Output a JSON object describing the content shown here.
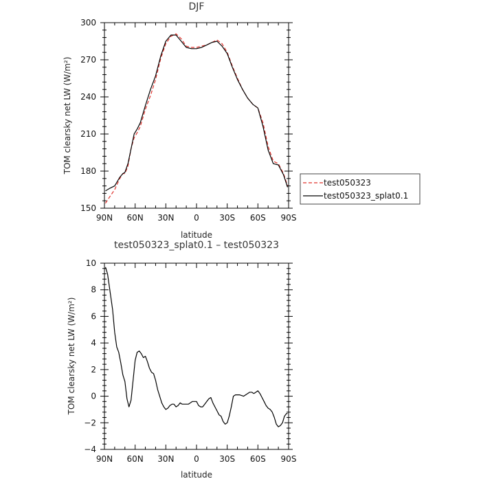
{
  "chart_data": [
    {
      "type": "line",
      "title": "DJF",
      "xlabel": "latitude",
      "ylabel": "TOM clearsky net LW (W/m²)",
      "xlim": [
        90,
        -90
      ],
      "ylim": [
        150,
        300
      ],
      "x_tick_values": [
        90,
        60,
        30,
        0,
        -30,
        -60,
        -90
      ],
      "x_tick_labels": [
        "90N",
        "60N",
        "30N",
        "0",
        "30S",
        "60S",
        "90S"
      ],
      "y_tick_values": [
        150,
        180,
        210,
        240,
        270,
        300
      ],
      "y_tick_labels": [
        "150",
        "180",
        "210",
        "240",
        "270",
        "300"
      ],
      "legend_position": "right",
      "series": [
        {
          "name": "test050323",
          "color": "#e0302a",
          "dash": "dashed",
          "x": [
            89,
            85,
            80,
            75,
            72,
            70,
            67,
            64,
            61,
            58,
            55,
            50,
            45,
            40,
            35,
            30,
            25,
            20,
            15,
            10,
            5,
            0,
            -5,
            -10,
            -15,
            -20,
            -25,
            -30,
            -35,
            -40,
            -45,
            -50,
            -55,
            -60,
            -65,
            -70,
            -75,
            -80,
            -85,
            -89
          ],
          "y": [
            154,
            159,
            165,
            174,
            178,
            178,
            184,
            198,
            207,
            211,
            216,
            230,
            241,
            254,
            271,
            283,
            289,
            291,
            287,
            281,
            280,
            280,
            281,
            282,
            284,
            286,
            283,
            276,
            265,
            255,
            246,
            239,
            234,
            231,
            219,
            200,
            188,
            186,
            178,
            168
          ]
        },
        {
          "name": "test050323_splat0.1",
          "color": "#000000",
          "dash": "solid",
          "x": [
            89,
            85,
            80,
            75,
            72,
            70,
            67,
            64,
            61,
            58,
            55,
            50,
            45,
            40,
            35,
            30,
            25,
            20,
            15,
            10,
            5,
            0,
            -5,
            -10,
            -15,
            -20,
            -25,
            -30,
            -35,
            -40,
            -45,
            -50,
            -55,
            -60,
            -65,
            -70,
            -75,
            -80,
            -85,
            -89
          ],
          "y": [
            164,
            166,
            168,
            175,
            178,
            179,
            186,
            198,
            210,
            214,
            219,
            233,
            246,
            257,
            273,
            285,
            290,
            290,
            285,
            280,
            279,
            279,
            280,
            282,
            284,
            285,
            281,
            275,
            264,
            254,
            246,
            239,
            234,
            231,
            216,
            197,
            186,
            185,
            177,
            167
          ]
        }
      ]
    },
    {
      "type": "line",
      "title": "test050323_splat0.1 – test050323",
      "xlabel": "latitude",
      "ylabel": "TOM clearsky net LW (W/m²)",
      "xlim": [
        90,
        -90
      ],
      "ylim": [
        -4,
        10
      ],
      "x_tick_values": [
        90,
        60,
        30,
        0,
        -30,
        -60,
        -90
      ],
      "x_tick_labels": [
        "90N",
        "60N",
        "30N",
        "0",
        "30S",
        "60S",
        "90S"
      ],
      "y_tick_values": [
        -4,
        -2,
        0,
        2,
        4,
        6,
        8,
        10
      ],
      "y_tick_labels": [
        "−4",
        "−2",
        "0",
        "2",
        "4",
        "6",
        "8",
        "10"
      ],
      "series": [
        {
          "color": "#000000",
          "x": [
            89,
            87,
            84,
            82,
            80,
            78,
            76,
            74,
            72,
            70,
            68,
            66,
            64,
            62,
            60,
            58,
            56,
            54,
            52,
            50,
            48,
            46,
            44,
            42,
            40,
            38,
            36,
            34,
            32,
            30,
            28,
            26,
            24,
            22,
            20,
            18,
            16,
            14,
            12,
            10,
            8,
            6,
            4,
            2,
            0,
            -2,
            -4,
            -6,
            -8,
            -10,
            -12,
            -14,
            -16,
            -18,
            -20,
            -22,
            -24,
            -26,
            -28,
            -30,
            -32,
            -34,
            -36,
            -38,
            -40,
            -42,
            -44,
            -46,
            -48,
            -50,
            -52,
            -54,
            -56,
            -58,
            -60,
            -62,
            -64,
            -66,
            -68,
            -70,
            -72,
            -74,
            -76,
            -78,
            -80,
            -82,
            -84,
            -86,
            -88,
            -89
          ],
          "y": [
            9.7,
            9.2,
            7.6,
            6.5,
            4.8,
            3.7,
            3.3,
            2.5,
            1.6,
            1.1,
            -0.2,
            -0.8,
            -0.3,
            1.2,
            2.7,
            3.3,
            3.4,
            3.2,
            2.9,
            3.0,
            2.6,
            2.1,
            1.8,
            1.7,
            1.2,
            0.5,
            0.0,
            -0.5,
            -0.8,
            -1.0,
            -0.9,
            -0.7,
            -0.6,
            -0.6,
            -0.8,
            -0.7,
            -0.5,
            -0.6,
            -0.6,
            -0.6,
            -0.6,
            -0.5,
            -0.4,
            -0.4,
            -0.4,
            -0.7,
            -0.8,
            -0.8,
            -0.6,
            -0.4,
            -0.2,
            -0.1,
            -0.5,
            -0.8,
            -1.1,
            -1.4,
            -1.5,
            -1.9,
            -2.1,
            -2.0,
            -1.5,
            -0.8,
            0.0,
            0.1,
            0.1,
            0.1,
            0.05,
            0.0,
            0.1,
            0.2,
            0.3,
            0.3,
            0.2,
            0.3,
            0.4,
            0.2,
            -0.1,
            -0.4,
            -0.7,
            -0.9,
            -1.0,
            -1.2,
            -1.6,
            -2.1,
            -2.3,
            -2.2,
            -2.0,
            -1.5,
            -1.3,
            -1.3
          ]
        }
      ]
    }
  ]
}
